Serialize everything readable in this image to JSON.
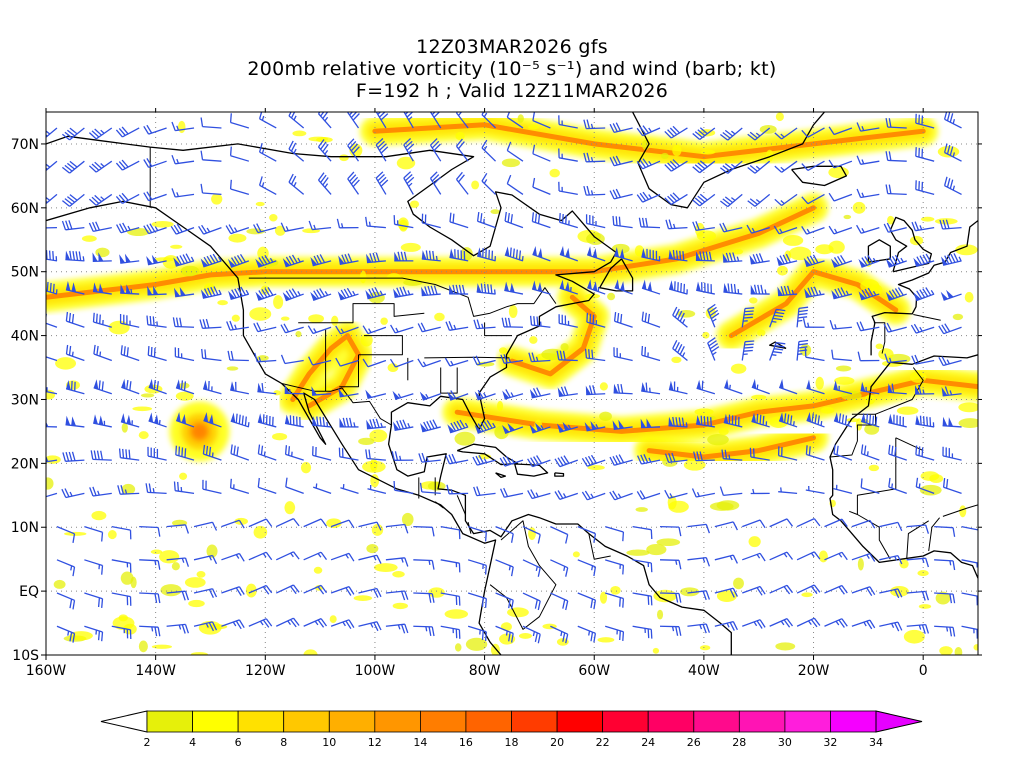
{
  "title": {
    "line1": "12Z03MAR2026 gfs",
    "line2": "200mb relative vorticity (10⁻⁵ s⁻¹) and wind (barb; kt)",
    "line3": "F=192 h ; Valid 12Z11MAR2026"
  },
  "map": {
    "lon_range": [
      -160,
      10
    ],
    "lat_range": [
      -10,
      75
    ],
    "grid": "dotted",
    "x_ticks": [
      {
        "value": -160,
        "label": "160W"
      },
      {
        "value": -140,
        "label": "140W"
      },
      {
        "value": -120,
        "label": "120W"
      },
      {
        "value": -100,
        "label": "100W"
      },
      {
        "value": -80,
        "label": "80W"
      },
      {
        "value": -60,
        "label": "60W"
      },
      {
        "value": -40,
        "label": "40W"
      },
      {
        "value": -20,
        "label": "20W"
      },
      {
        "value": 0,
        "label": "0"
      }
    ],
    "y_ticks": [
      {
        "value": 70,
        "label": "70N"
      },
      {
        "value": 60,
        "label": "60N"
      },
      {
        "value": 50,
        "label": "50N"
      },
      {
        "value": 40,
        "label": "40N"
      },
      {
        "value": 30,
        "label": "30N"
      },
      {
        "value": 20,
        "label": "20N"
      },
      {
        "value": 10,
        "label": "10N"
      },
      {
        "value": 0,
        "label": "EQ"
      },
      {
        "value": -10,
        "label": "10S"
      }
    ],
    "barb_color": "#3050e0",
    "coast_color": "#000000"
  },
  "colorbar": {
    "labels": [
      "2",
      "4",
      "6",
      "8",
      "10",
      "12",
      "14",
      "16",
      "18",
      "20",
      "22",
      "24",
      "26",
      "28",
      "30",
      "32",
      "34"
    ],
    "colors": [
      "#e6f00a",
      "#ffff00",
      "#ffe100",
      "#ffc800",
      "#ffaf00",
      "#ff9600",
      "#ff7d00",
      "#ff6400",
      "#ff3c00",
      "#ff0000",
      "#ff0032",
      "#ff0064",
      "#ff0a8c",
      "#ff14b4",
      "#ff1edc",
      "#f500ff"
    ],
    "under_color": "#ffffff",
    "over_color": "#e600ff"
  },
  "vorticity_features": [
    {
      "name": "north-pacific-jet",
      "points": [
        [
          -160,
          46
        ],
        [
          -150,
          47
        ],
        [
          -140,
          48
        ],
        [
          -130,
          49.5
        ],
        [
          -120,
          50
        ],
        [
          -105,
          50
        ],
        [
          -90,
          50
        ],
        [
          -75,
          50
        ],
        [
          -60,
          50
        ],
        [
          -45,
          52
        ],
        [
          -30,
          56
        ],
        [
          -20,
          60
        ]
      ]
    },
    {
      "name": "southwest-us-trough",
      "points": [
        [
          -115,
          30
        ],
        [
          -112,
          34
        ],
        [
          -108,
          38
        ],
        [
          -105,
          40
        ],
        [
          -103,
          37
        ],
        [
          -106,
          32
        ],
        [
          -112,
          29
        ]
      ]
    },
    {
      "name": "east-coast-arc",
      "points": [
        [
          -75,
          36
        ],
        [
          -68,
          34
        ],
        [
          -62,
          38
        ],
        [
          -60,
          43
        ],
        [
          -64,
          46
        ]
      ]
    },
    {
      "name": "subtropical-jet",
      "points": [
        [
          -85,
          28
        ],
        [
          -70,
          26
        ],
        [
          -55,
          25
        ],
        [
          -40,
          26
        ],
        [
          -30,
          28
        ],
        [
          -20,
          29
        ],
        [
          -10,
          31
        ],
        [
          0,
          33
        ],
        [
          10,
          32
        ]
      ]
    },
    {
      "name": "atlantic-south-band",
      "points": [
        [
          -50,
          22
        ],
        [
          -40,
          21
        ],
        [
          -30,
          22
        ],
        [
          -20,
          24
        ]
      ]
    },
    {
      "name": "central-pacific-vortex",
      "points": [
        [
          -132,
          25
        ]
      ]
    },
    {
      "name": "northeast-atlantic-ridge",
      "points": [
        [
          -35,
          40
        ],
        [
          -25,
          45
        ],
        [
          -20,
          50
        ],
        [
          -12,
          48
        ],
        [
          -5,
          44
        ]
      ]
    },
    {
      "name": "arctic-band",
      "points": [
        [
          -100,
          72
        ],
        [
          -80,
          73
        ],
        [
          -60,
          70
        ],
        [
          -40,
          68
        ],
        [
          -20,
          70
        ],
        [
          0,
          72
        ]
      ]
    }
  ]
}
